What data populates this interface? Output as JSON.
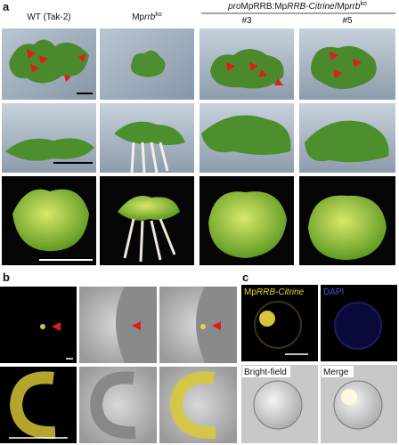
{
  "panel_a": {
    "label": "a",
    "headers": [
      [
        "WT (Tak-2)"
      ],
      [
        "Mp",
        "rrb",
        "ko"
      ],
      [
        "#3"
      ],
      [
        "#5"
      ]
    ],
    "group_header": [
      "pro",
      "MpRRB",
      ":Mp",
      "RRB-Citrine",
      "/Mp",
      "rrb",
      "ko"
    ]
  },
  "panel_b": {
    "label": "b"
  },
  "panel_c": {
    "label": "c",
    "labels": [
      [
        "Mp",
        "RRB-Citrine"
      ],
      [
        "DAPI"
      ],
      [
        "Bright-field"
      ],
      [
        "Merge"
      ]
    ]
  }
}
